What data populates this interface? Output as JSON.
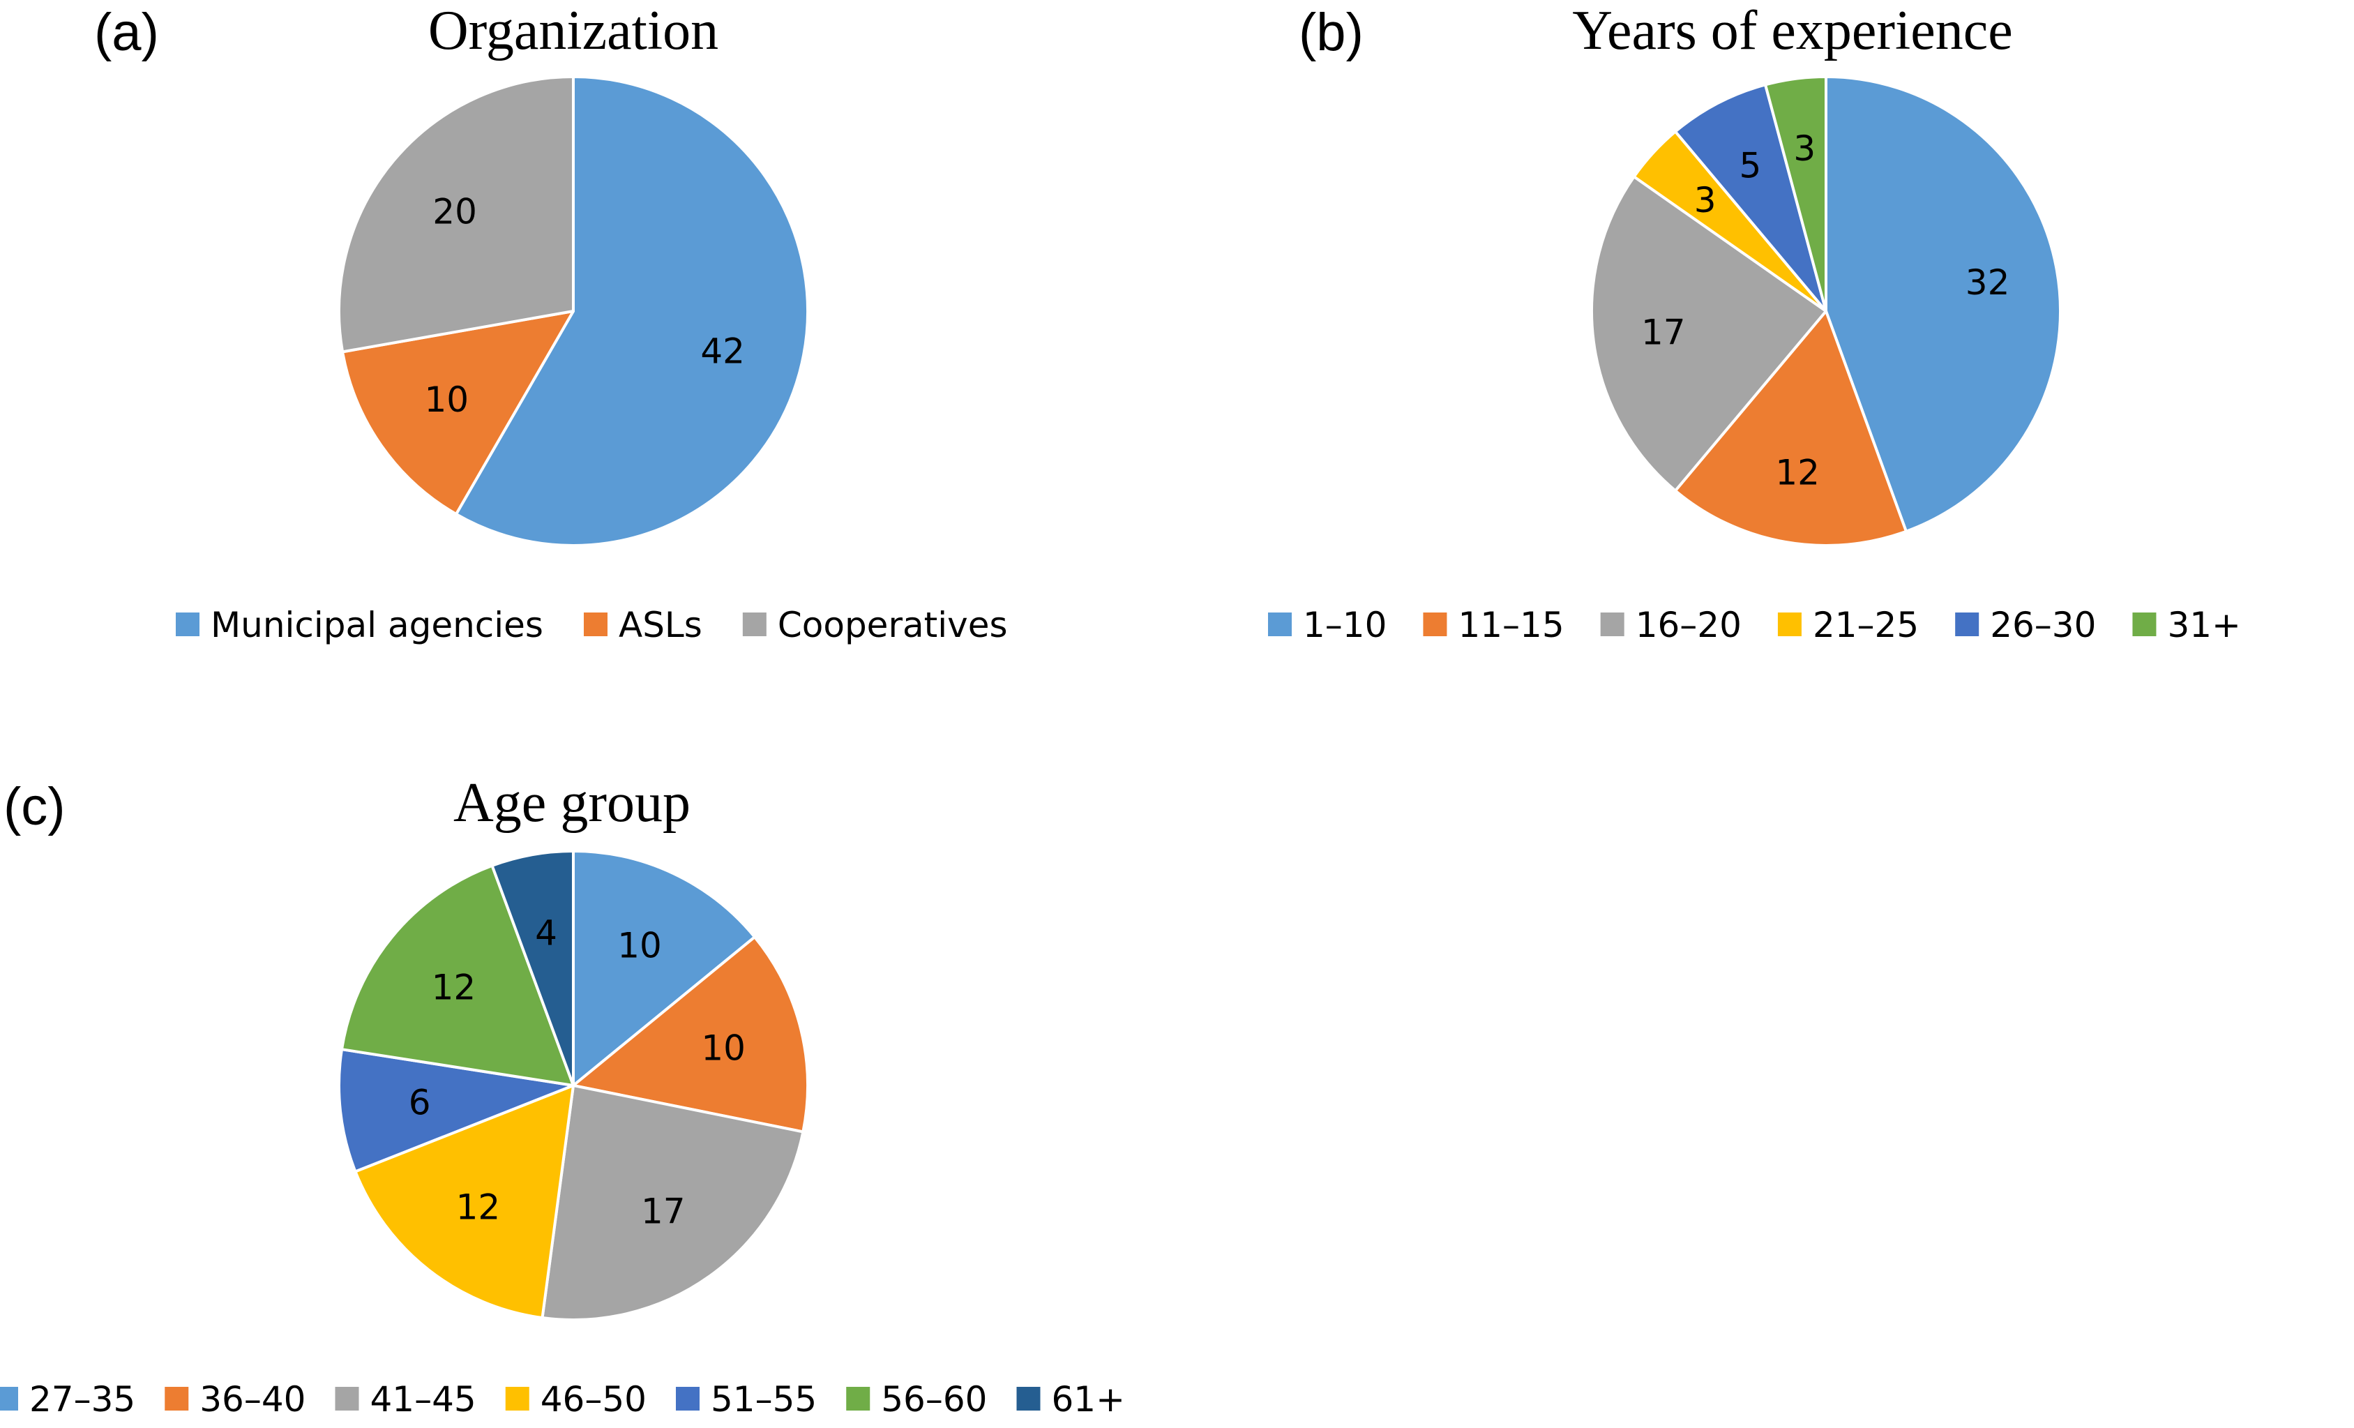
{
  "chart_data": [
    {
      "type": "pie",
      "panel": "(a)",
      "title": "Organization",
      "slices": [
        {
          "label": "Municipal agencies",
          "value": 42,
          "color": "#5b9bd5"
        },
        {
          "label": "ASLs",
          "value": 10,
          "color": "#ed7d31"
        },
        {
          "label": "Cooperatives",
          "value": 20,
          "color": "#a5a5a5"
        }
      ],
      "legend_position": "bottom"
    },
    {
      "type": "pie",
      "panel": "(b)",
      "title": "Years of experience",
      "slices": [
        {
          "label": "1–10",
          "value": 32,
          "color": "#5b9bd5"
        },
        {
          "label": "11–15",
          "value": 12,
          "color": "#ed7d31"
        },
        {
          "label": "16–20",
          "value": 17,
          "color": "#a5a5a5"
        },
        {
          "label": "21–25",
          "value": 3,
          "color": "#ffc000"
        },
        {
          "label": "26–30",
          "value": 5,
          "color": "#4472c4"
        },
        {
          "label": "31+",
          "value": 3,
          "color": "#70ad47"
        }
      ],
      "legend_position": "bottom"
    },
    {
      "type": "pie",
      "panel": "(c)",
      "title": "Age group",
      "slices": [
        {
          "label": "27–35",
          "value": 10,
          "color": "#5b9bd5"
        },
        {
          "label": "36–40",
          "value": 10,
          "color": "#ed7d31"
        },
        {
          "label": "41–45",
          "value": 17,
          "color": "#a5a5a5"
        },
        {
          "label": "46–50",
          "value": 12,
          "color": "#ffc000"
        },
        {
          "label": "51–55",
          "value": 6,
          "color": "#4472c4"
        },
        {
          "label": "56–60",
          "value": 12,
          "color": "#70ad47"
        },
        {
          "label": "61+",
          "value": 4,
          "color": "#255e91"
        }
      ],
      "legend_position": "bottom"
    }
  ]
}
